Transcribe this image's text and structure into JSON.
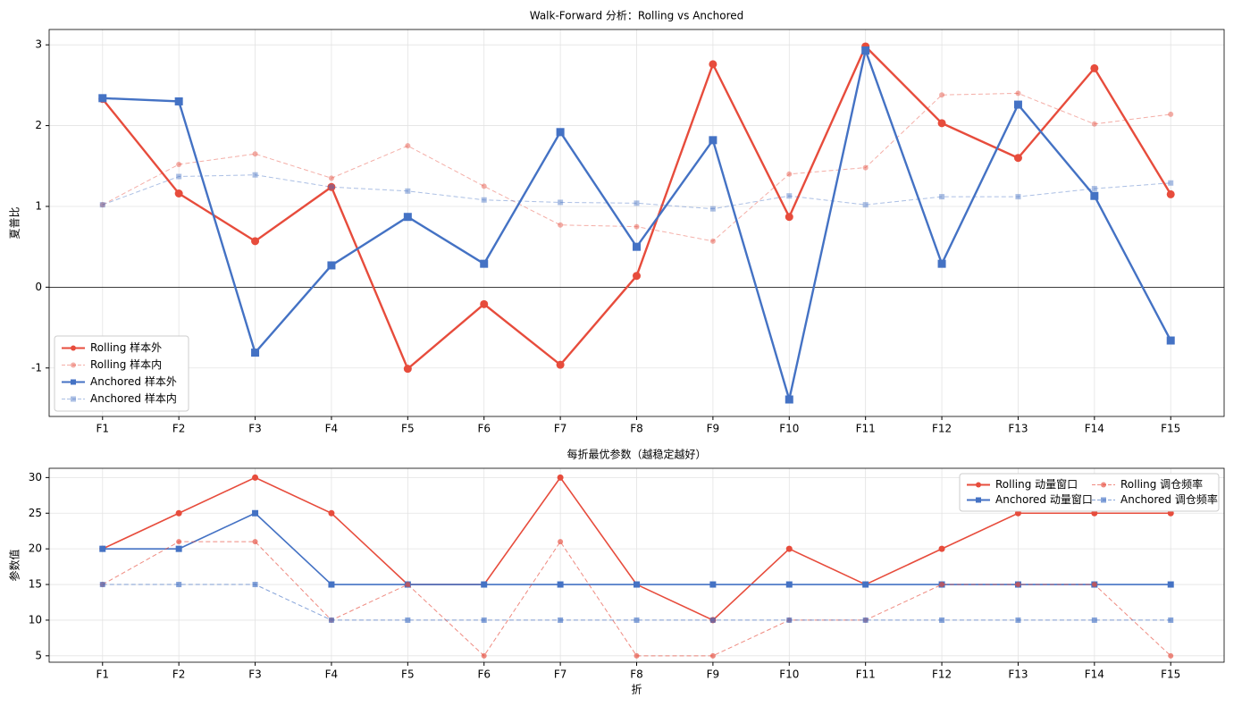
{
  "chart_data": [
    {
      "type": "line",
      "title": "Walk-Forward 分析：Rolling vs Anchored",
      "y_label": "夏普比",
      "categories": [
        "F1",
        "F2",
        "F3",
        "F4",
        "F5",
        "F6",
        "F7",
        "F8",
        "F9",
        "F10",
        "F11",
        "F12",
        "F13",
        "F14",
        "F15"
      ],
      "ylim": [
        -1.6,
        3.19
      ],
      "yticks": [
        -1,
        0,
        1,
        2,
        3
      ],
      "grid": true,
      "hline": 0,
      "legend": "lower-left",
      "legend_columns": 1,
      "series": [
        {
          "name": "Rolling 样本外",
          "color": "#e74c3c",
          "alpha": 1,
          "dashed": false,
          "marker": "circle",
          "values": [
            2.33,
            1.16,
            0.57,
            1.24,
            -1.01,
            -0.21,
            -0.96,
            0.14,
            2.76,
            0.87,
            2.98,
            2.03,
            1.6,
            2.71,
            1.15
          ]
        },
        {
          "name": "Rolling 样本内",
          "color": "#e74c3c",
          "alpha": 0.45,
          "dashed": true,
          "marker": "circle",
          "values": [
            1.02,
            1.52,
            1.65,
            1.35,
            1.75,
            1.25,
            0.77,
            0.75,
            0.57,
            1.4,
            1.48,
            2.38,
            2.4,
            2.02,
            2.14
          ]
        },
        {
          "name": "Anchored 样本外",
          "color": "#4472c4",
          "alpha": 1,
          "dashed": false,
          "marker": "square",
          "values": [
            2.34,
            2.3,
            -0.81,
            0.27,
            0.87,
            0.29,
            1.92,
            0.5,
            1.82,
            -1.39,
            2.93,
            0.29,
            2.26,
            1.13,
            -0.66
          ]
        },
        {
          "name": "Anchored 样本内",
          "color": "#4472c4",
          "alpha": 0.45,
          "dashed": true,
          "marker": "square",
          "values": [
            1.02,
            1.37,
            1.39,
            1.24,
            1.19,
            1.08,
            1.05,
            1.04,
            0.97,
            1.13,
            1.02,
            1.12,
            1.12,
            1.22,
            1.29
          ]
        }
      ]
    },
    {
      "type": "line",
      "title": "每折最优参数（越稳定越好）",
      "x_label": "折",
      "y_label": "参数值",
      "categories": [
        "F1",
        "F2",
        "F3",
        "F4",
        "F5",
        "F6",
        "F7",
        "F8",
        "F9",
        "F10",
        "F11",
        "F12",
        "F13",
        "F14",
        "F15"
      ],
      "ylim": [
        4.1,
        31.3
      ],
      "yticks": [
        5,
        10,
        15,
        20,
        25,
        30
      ],
      "grid": true,
      "legend": "upper-right",
      "legend_columns": 2,
      "series": [
        {
          "name": "Rolling 动量窗口",
          "color": "#e74c3c",
          "alpha": 1,
          "dashed": false,
          "marker": "circle",
          "values": [
            20,
            25,
            30,
            25,
            15,
            15,
            30,
            15,
            10,
            20,
            15,
            20,
            25,
            25,
            25
          ]
        },
        {
          "name": "Anchored 动量窗口",
          "color": "#4472c4",
          "alpha": 1,
          "dashed": false,
          "marker": "square",
          "values": [
            20,
            20,
            25,
            15,
            15,
            15,
            15,
            15,
            15,
            15,
            15,
            15,
            15,
            15,
            15
          ]
        },
        {
          "name": "Rolling 调仓频率",
          "color": "#e74c3c",
          "alpha": 0.65,
          "dashed": true,
          "marker": "circle",
          "values": [
            15,
            21,
            21,
            10,
            15,
            5,
            21,
            5,
            5,
            10,
            10,
            15,
            15,
            15,
            5
          ]
        },
        {
          "name": "Anchored 调仓频率",
          "color": "#4472c4",
          "alpha": 0.65,
          "dashed": true,
          "marker": "square",
          "values": [
            15,
            15,
            15,
            10,
            10,
            10,
            10,
            10,
            10,
            10,
            10,
            10,
            10,
            10,
            10
          ]
        }
      ]
    }
  ]
}
